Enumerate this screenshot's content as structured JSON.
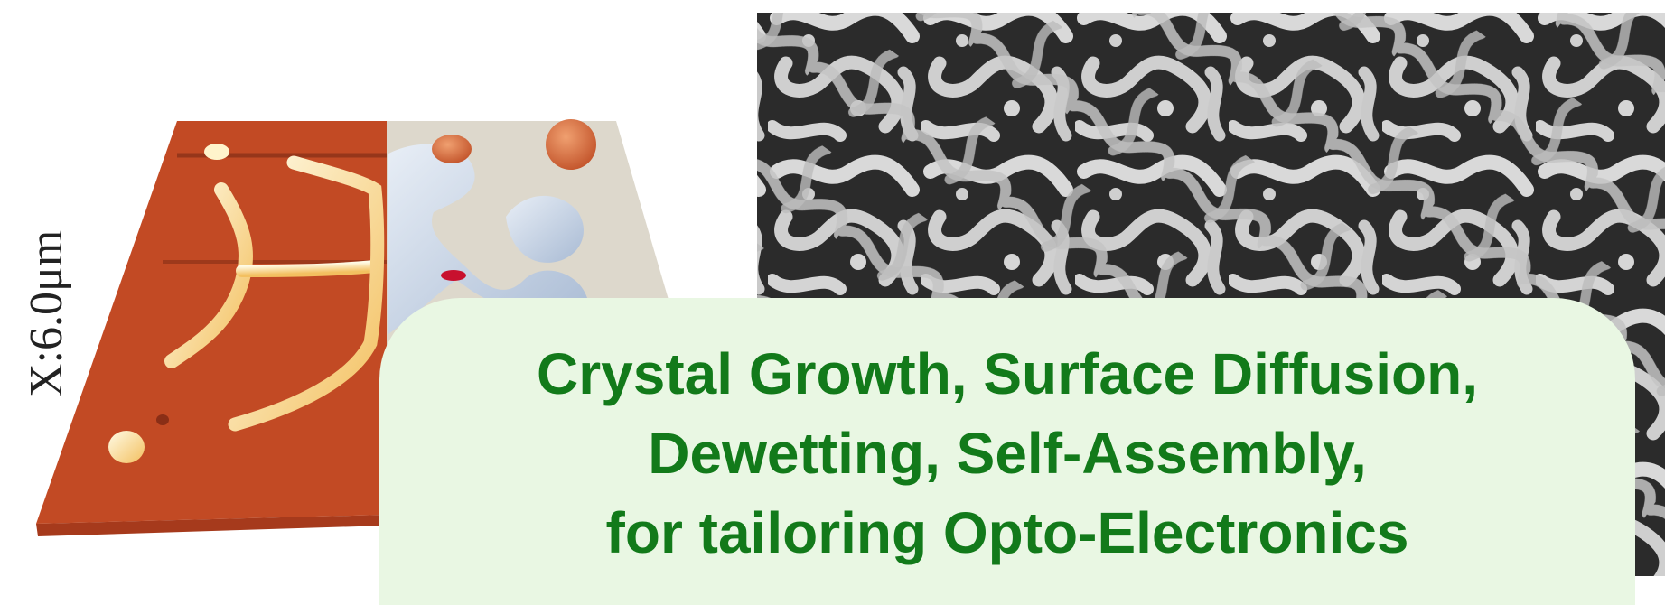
{
  "afm_image": {
    "axis_label": "X:6.0μm",
    "colors": {
      "surface": "#c24a24",
      "ridge": "#fff4cc",
      "side": "#a63a1c"
    }
  },
  "simulation_image": {
    "colors": {
      "background": "#ddd8cc",
      "body": "#c9d6e8",
      "tip": "#d46a3c",
      "neck": "#c8102e"
    }
  },
  "sem_image": {
    "colors": {
      "background": "#2a2a2a",
      "worm": "#cfcfcf"
    }
  },
  "caption": {
    "lines": [
      "Crystal Growth, Surface Diffusion,",
      "Dewetting, Self-Assembly,",
      "for tailoring Opto-Electronics"
    ],
    "text_color": "#127a1a",
    "background": "#e9f7e3"
  }
}
